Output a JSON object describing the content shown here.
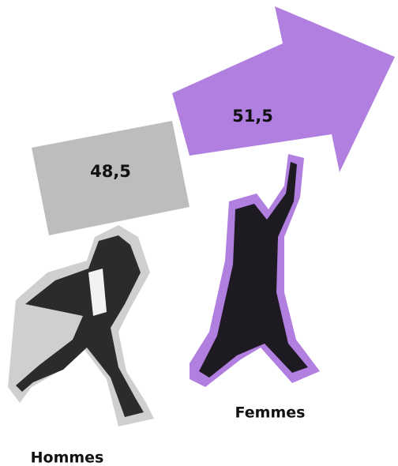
{
  "chart_data": {
    "type": "pictograph",
    "categories": [
      "Hommes",
      "Femmes"
    ],
    "values": [
      48.5,
      51.5
    ],
    "value_labels": [
      "48,5",
      "51,5"
    ],
    "colors": [
      "#bdbdbd",
      "#b07fe0"
    ]
  }
}
